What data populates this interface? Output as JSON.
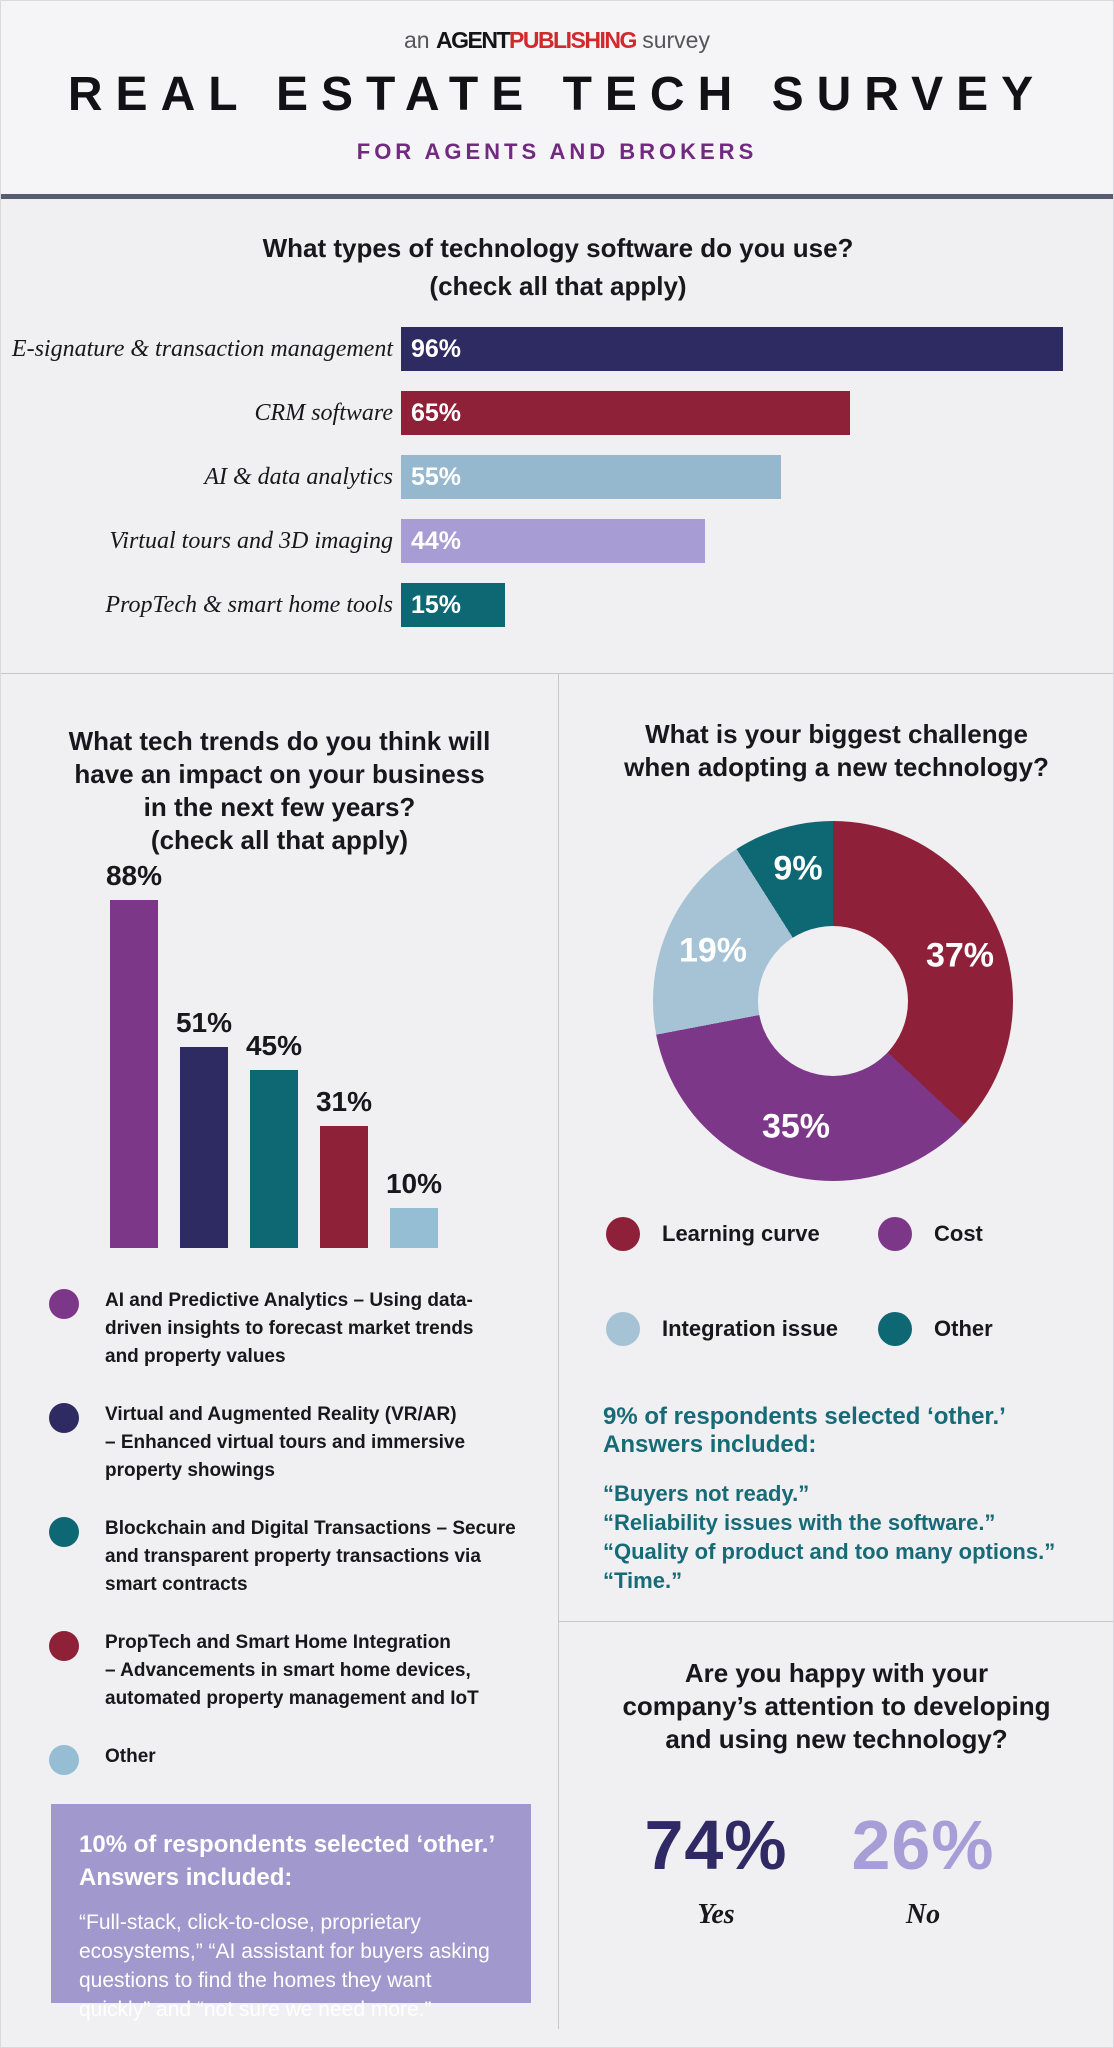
{
  "page": {
    "tagline": {
      "prefix": "an ",
      "brand_black": "AGENT",
      "brand_red": "PUBLISHING",
      "suffix": " survey"
    },
    "title": "REAL ESTATE TECH SURVEY",
    "subtitle": "FOR AGENTS AND BROKERS"
  },
  "colors": {
    "background": "#f0eff2",
    "navy": "#2e2a62",
    "maroon": "#8e2037",
    "purple": "#7c3789",
    "teal": "#0d6873",
    "light_blue": "#95b8ce",
    "light_purple": "#a89cd4",
    "teal_text": "#176b77",
    "subtitle_purple": "#712a80",
    "logo_red": "#d02a2e",
    "header_rule": "#575c72"
  },
  "chart_data": [
    {
      "type": "bar",
      "orientation": "horizontal",
      "title": "What types of technology software do you use?\n(check all that apply)",
      "categories": [
        "E-signature & transaction management",
        "CRM software",
        "AI & data analytics",
        "Virtual tours and 3D imaging",
        "PropTech & smart home tools"
      ],
      "values": [
        96,
        65,
        55,
        44,
        15
      ],
      "value_labels": [
        "96%",
        "65%",
        "55%",
        "44%",
        "15%"
      ],
      "colors": [
        "#2e2a62",
        "#8e2037",
        "#95b8ce",
        "#a89cd4",
        "#0d6873"
      ],
      "xlim": [
        0,
        100
      ],
      "grid": false
    },
    {
      "type": "bar",
      "orientation": "vertical",
      "title": "What tech trends do you think will\nhave an impact on your business\nin the next few years?\n(check all that apply)",
      "categories": [
        "AI and Predictive Analytics",
        "Virtual and Augmented Reality (VR/AR)",
        "Blockchain and Digital Transactions",
        "PropTech and Smart Home Integration",
        "Other"
      ],
      "values": [
        88,
        51,
        45,
        31,
        10
      ],
      "value_labels": [
        "88%",
        "51%",
        "45%",
        "31%",
        "10%"
      ],
      "colors": [
        "#7c3789",
        "#2e2a62",
        "#0d6873",
        "#8e2037",
        "#95bed4"
      ],
      "ylim": [
        0,
        100
      ],
      "grid": false,
      "legend_position": "below",
      "legend": [
        {
          "color": "#7c3789",
          "text": "AI and Predictive Analytics – Using data-\ndriven insights to forecast market trends\nand property values"
        },
        {
          "color": "#2e2a62",
          "text": "Virtual and Augmented Reality (VR/AR)\n– Enhanced virtual tours and immersive\nproperty showings"
        },
        {
          "color": "#0d6873",
          "text": "Blockchain and Digital Transactions – Secure\nand transparent property transactions via\nsmart contracts"
        },
        {
          "color": "#8e2037",
          "text": "PropTech and Smart Home Integration\n– Advancements in smart home devices,\nautomated property management and IoT"
        },
        {
          "color": "#95bed4",
          "text": "Other"
        }
      ],
      "other_note": {
        "heading": "10% of respondents selected ‘other.’\nAnswers included:",
        "body": "“Full-stack, click-to-close, proprietary\necosystems,” “AI assistant for buyers asking\nquestions to find the homes they want\nquickly” and “not sure we need more.”",
        "box_color": "#a198cd"
      }
    },
    {
      "type": "pie",
      "donut": true,
      "start_angle_deg": 0,
      "direction": "clockwise",
      "title": "What is your biggest challenge\nwhen adopting a new technology?",
      "labels": [
        "Learning curve",
        "Cost",
        "Integration issue",
        "Other"
      ],
      "values": [
        37,
        35,
        19,
        9
      ],
      "value_labels": [
        "37%",
        "35%",
        "19%",
        "9%"
      ],
      "colors": [
        "#8e2139",
        "#7c3789",
        "#a5c3d5",
        "#0d6873"
      ],
      "legend_position": "below",
      "other_note": {
        "heading": "9% of respondents selected ‘other.’\nAnswers included:",
        "quotes": [
          "“Buyers not ready.”",
          "“Reliability issues with the software.”",
          "“Quality of product and too many options.”",
          "“Time.”"
        ]
      }
    },
    {
      "type": "stat",
      "title": "Are you happy with your\ncompany’s attention to developing\nand using new technology?",
      "options": [
        {
          "label": "Yes",
          "value": "74%",
          "color": "#2f2a63"
        },
        {
          "label": "No",
          "value": "26%",
          "color": "#a79ed8"
        }
      ]
    }
  ]
}
